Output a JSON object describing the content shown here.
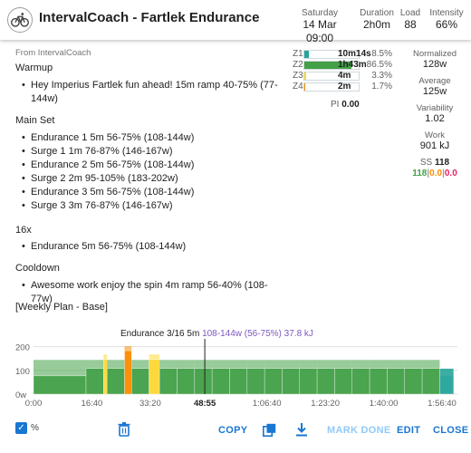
{
  "header": {
    "title": "IntervalCoach - Fartlek Endurance",
    "date_label": "Saturday",
    "date_value": "14 Mar 09:00",
    "duration_label": "Duration",
    "duration_value": "2h0m",
    "load_label": "Load",
    "load_value": "88",
    "intensity_label": "Intensity",
    "intensity_value": "66%"
  },
  "description": {
    "source": "From IntervalCoach",
    "sections": [
      {
        "heading": "Warmup",
        "steps": [
          "Hey Imperius Fartlek fun ahead! 15m ramp 40-75% (77-",
          "144w)"
        ]
      },
      {
        "heading": "Main Set",
        "steps": [
          "Endurance 1 5m 56-75% (108-144w)",
          "Surge 1 1m 76-87% (146-167w)",
          "Endurance 2 5m 56-75% (108-144w)",
          "Surge 2 2m 95-105% (183-202w)",
          "Endurance 3 5m 56-75% (108-144w)",
          "Surge 3 3m 76-87% (146-167w)"
        ]
      },
      {
        "heading": "16x",
        "steps": [
          "Endurance 5m 56-75% (108-144w)"
        ]
      },
      {
        "heading": "Cooldown",
        "steps": [
          "Awesome work enjoy the spin 4m ramp 56-40% (108-77w)"
        ]
      },
      {
        "heading": "[Weekly Plan - Base]",
        "steps": []
      }
    ]
  },
  "zones": [
    {
      "name": "Z1",
      "time": "10m14s",
      "pct": "8.5%",
      "fraction": 0.085,
      "color": "#26a69a"
    },
    {
      "name": "Z2",
      "time": "1h43m",
      "pct": "86.5%",
      "fraction": 0.865,
      "color": "#43a047"
    },
    {
      "name": "Z3",
      "time": "4m",
      "pct": "3.3%",
      "fraction": 0.033,
      "color": "#fdd835"
    },
    {
      "name": "Z4",
      "time": "2m",
      "pct": "1.7%",
      "fraction": 0.017,
      "color": "#fb8c00"
    }
  ],
  "pi": {
    "label": "PI",
    "value": "0.00"
  },
  "stats": {
    "normalized_label": "Normalized",
    "normalized_value": "128w",
    "average_label": "Average",
    "average_value": "125w",
    "variability_label": "Variability",
    "variability_value": "1.02",
    "work_label": "Work",
    "work_value": "901 kJ",
    "ss_label": "SS",
    "ss_value": "118",
    "ss_parts": [
      "118",
      "0.0",
      "0.0"
    ],
    "ss_colors": [
      "#43a047",
      "#fb8c00",
      "#e91e63"
    ],
    "ss_sep": "|"
  },
  "chart_caption": {
    "label": "Endurance 3/16  5m",
    "detail": "108-144w (56-75%) 37.8 kJ",
    "detail_color": "#7e57c2"
  },
  "chart_data": {
    "type": "area",
    "ylim": [
      0,
      210
    ],
    "xlim": [
      0,
      7000
    ],
    "y_ticks": [
      "200",
      "100",
      "0w"
    ],
    "y_tick_values": [
      200,
      100,
      0
    ],
    "x_ticks": [
      "0:00",
      "16:40",
      "33:20",
      "48:55",
      "1:06:40",
      "1:23:20",
      "1:40:00",
      "1:56:40"
    ],
    "x_tick_values": [
      0,
      1000,
      2000,
      2935,
      4000,
      5000,
      6000,
      7000
    ],
    "x_tick_highlight": "48:55",
    "segments": [
      {
        "start": 0,
        "end": 900,
        "from": 77,
        "to": 144,
        "zone": "Z2"
      },
      {
        "start": 900,
        "end": 1200,
        "from": 108,
        "to": 144,
        "zone": "Z2"
      },
      {
        "start": 1200,
        "end": 1260,
        "from": 146,
        "to": 167,
        "zone": "Z3"
      },
      {
        "start": 1260,
        "end": 1560,
        "from": 108,
        "to": 144,
        "zone": "Z2"
      },
      {
        "start": 1560,
        "end": 1680,
        "from": 183,
        "to": 202,
        "zone": "Z4"
      },
      {
        "start": 1680,
        "end": 1980,
        "from": 108,
        "to": 144,
        "zone": "Z2"
      },
      {
        "start": 1980,
        "end": 2160,
        "from": 146,
        "to": 167,
        "zone": "Z3"
      },
      {
        "start": 2160,
        "end": 6960,
        "from": 108,
        "to": 144,
        "zone": "Z2",
        "repeat": 16
      },
      {
        "start": 6960,
        "end": 7200,
        "from": 108,
        "to": 77,
        "zone": "Z1"
      }
    ],
    "cursor_x": 2935
  },
  "actions": {
    "pct_label": "%",
    "copy": "COPY",
    "mark_done": "MARK DONE",
    "edit": "EDIT",
    "close": "CLOSE"
  }
}
